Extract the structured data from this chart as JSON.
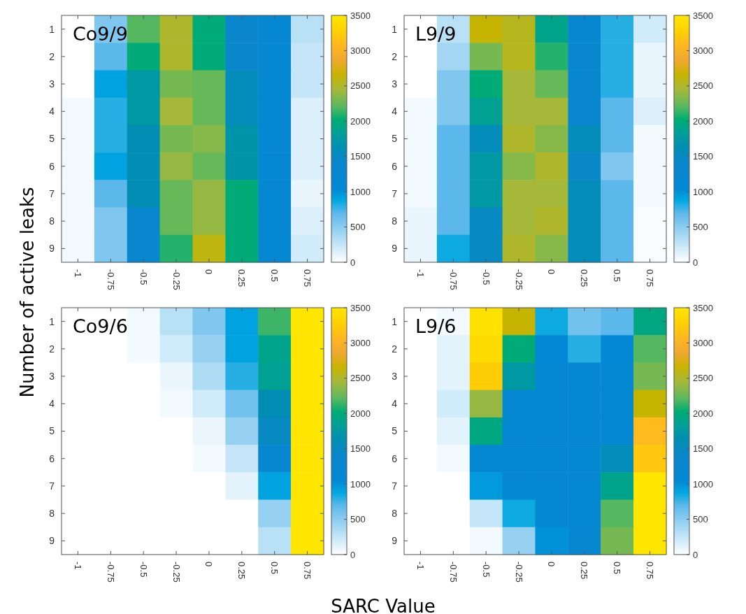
{
  "chart_data": [
    {
      "type": "heatmap",
      "title": "Co9/9",
      "ylabel": "Number of active leaks",
      "categories": [
        "-1",
        "-0.75",
        "-0.5",
        "-0.25",
        "0",
        "0.25",
        "0.5",
        "0.75"
      ],
      "y_categories": [
        "1",
        "2",
        "3",
        "4",
        "5",
        "6",
        "7",
        "8",
        "9"
      ],
      "clim": [
        0,
        3500
      ],
      "cticks": [
        0,
        500,
        1000,
        1500,
        2000,
        2500,
        3000,
        3500
      ],
      "cells": [
        [
          0,
          550,
          2200,
          2500,
          2000,
          1400,
          1200,
          300
        ],
        [
          0,
          700,
          2000,
          2500,
          2000,
          1400,
          1200,
          250
        ],
        [
          0,
          900,
          1750,
          2300,
          2250,
          1550,
          1200,
          250
        ],
        [
          50,
          800,
          1750,
          2450,
          2250,
          1550,
          1200,
          150
        ],
        [
          50,
          800,
          1600,
          2300,
          2350,
          1700,
          1200,
          150
        ],
        [
          50,
          900,
          1600,
          2400,
          2250,
          1700,
          1200,
          150
        ],
        [
          50,
          700,
          1600,
          2250,
          2400,
          2000,
          1200,
          100
        ],
        [
          50,
          550,
          1300,
          2250,
          2400,
          2000,
          1200,
          150
        ],
        [
          50,
          550,
          1300,
          2100,
          2600,
          2000,
          1200,
          200
        ]
      ]
    },
    {
      "type": "heatmap",
      "title": "L9/9",
      "categories": [
        "-1",
        "-0.75",
        "-0.5",
        "-0.25",
        "0",
        "0.25",
        "0.5",
        "0.75"
      ],
      "y_categories": [
        "1",
        "2",
        "3",
        "4",
        "5",
        "6",
        "7",
        "8",
        "9"
      ],
      "clim": [
        0,
        3500
      ],
      "cticks": [
        0,
        500,
        1000,
        1500,
        2000,
        2500,
        3000,
        3500
      ],
      "cells": [
        [
          0,
          300,
          2650,
          2550,
          1900,
          1250,
          800,
          200
        ],
        [
          0,
          400,
          2300,
          2550,
          2100,
          1300,
          800,
          100
        ],
        [
          0,
          550,
          2000,
          2450,
          2250,
          1300,
          800,
          100
        ],
        [
          50,
          550,
          1850,
          2450,
          2450,
          1300,
          700,
          150
        ],
        [
          50,
          700,
          1550,
          2500,
          2350,
          1550,
          700,
          50
        ],
        [
          50,
          700,
          1750,
          2350,
          2500,
          1450,
          550,
          50
        ],
        [
          50,
          700,
          1750,
          2450,
          2450,
          1550,
          700,
          50
        ],
        [
          100,
          700,
          1500,
          2450,
          2500,
          1550,
          700,
          30
        ],
        [
          100,
          850,
          1500,
          2500,
          2350,
          1550,
          700,
          30
        ]
      ]
    },
    {
      "type": "heatmap",
      "title": "Co9/6",
      "xlabel": "SARC Value",
      "categories": [
        "-1",
        "-0.75",
        "-0.5",
        "-0.25",
        "0",
        "0.25",
        "0.5",
        "0.75"
      ],
      "y_categories": [
        "1",
        "2",
        "3",
        "4",
        "5",
        "6",
        "7",
        "8",
        "9"
      ],
      "clim": [
        0,
        3500
      ],
      "cticks": [
        0,
        500,
        1000,
        1500,
        2000,
        2500,
        3000,
        3500
      ],
      "cells": [
        [
          0,
          0,
          50,
          300,
          550,
          900,
          2150,
          3500
        ],
        [
          0,
          0,
          50,
          200,
          450,
          900,
          1900,
          3500
        ],
        [
          0,
          0,
          0,
          80,
          350,
          800,
          1850,
          3500
        ],
        [
          0,
          0,
          0,
          50,
          200,
          600,
          1600,
          3500
        ],
        [
          0,
          0,
          0,
          0,
          80,
          450,
          1500,
          3500
        ],
        [
          0,
          0,
          0,
          0,
          50,
          250,
          1250,
          3500
        ],
        [
          0,
          0,
          0,
          0,
          0,
          120,
          900,
          3500
        ],
        [
          0,
          0,
          0,
          0,
          0,
          0,
          450,
          3500
        ],
        [
          0,
          0,
          0,
          0,
          0,
          0,
          300,
          3500
        ]
      ]
    },
    {
      "type": "heatmap",
      "title": "L9/6",
      "categories": [
        "-1",
        "-0.75",
        "-0.5",
        "-0.25",
        "0",
        "0.25",
        "0.5",
        "0.75"
      ],
      "y_categories": [
        "1",
        "2",
        "3",
        "4",
        "5",
        "6",
        "7",
        "8",
        "9"
      ],
      "clim": [
        0,
        3500
      ],
      "cticks": [
        0,
        500,
        1000,
        1500,
        2000,
        2500,
        3000,
        3500
      ],
      "cells": [
        [
          0,
          50,
          3450,
          2650,
          850,
          600,
          700,
          1950
        ],
        [
          0,
          120,
          3400,
          2000,
          1100,
          800,
          1100,
          2200
        ],
        [
          0,
          120,
          3250,
          1750,
          1200,
          1200,
          1200,
          2300
        ],
        [
          0,
          200,
          2400,
          1200,
          1200,
          1200,
          1200,
          2650
        ],
        [
          0,
          120,
          1950,
          1200,
          1200,
          1200,
          1200,
          3100
        ],
        [
          0,
          50,
          1200,
          1200,
          1200,
          1200,
          1550,
          3200
        ],
        [
          0,
          0,
          950,
          1200,
          1200,
          1200,
          1900,
          3500
        ],
        [
          0,
          0,
          250,
          850,
          1200,
          1200,
          2200,
          3500
        ],
        [
          0,
          0,
          50,
          450,
          1000,
          1250,
          2300,
          3500
        ]
      ]
    }
  ]
}
